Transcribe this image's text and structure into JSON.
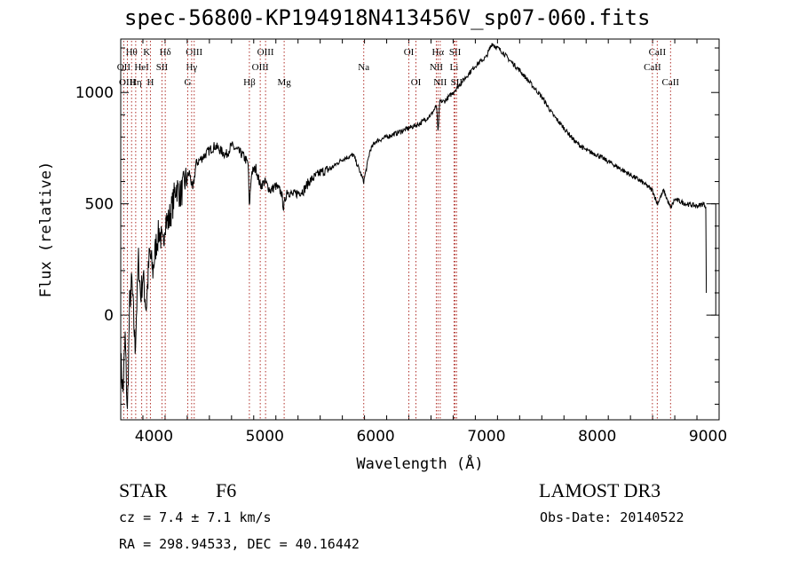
{
  "chart_data": {
    "type": "line",
    "title": "spec-56800-KP194918N413456V_sp07-060.fits",
    "xlabel": "Wavelength (Å)",
    "ylabel": "Flux (relative)",
    "xlim": [
      3700,
      9100
    ],
    "ylim": [
      -470,
      1240
    ],
    "x_ticks": [
      4000,
      5000,
      6000,
      7000,
      8000,
      9000
    ],
    "x_tick_labels": [
      "4000",
      "5000",
      "6000",
      "7000",
      "8000",
      "9000"
    ],
    "y_ticks": [
      0,
      500,
      1000
    ],
    "y_tick_labels": [
      "0",
      "500",
      "1000"
    ],
    "series": [
      {
        "name": "flux",
        "x": [
          3700,
          3720,
          3740,
          3760,
          3780,
          3800,
          3830,
          3860,
          3880,
          3900,
          3930,
          3960,
          3990,
          4020,
          4050,
          4080,
          4100,
          4130,
          4170,
          4200,
          4240,
          4280,
          4320,
          4350,
          4380,
          4420,
          4460,
          4500,
          4550,
          4600,
          4650,
          4700,
          4750,
          4800,
          4850,
          4860,
          4880,
          4920,
          4960,
          5000,
          5050,
          5100,
          5150,
          5170,
          5200,
          5250,
          5300,
          5350,
          5400,
          5450,
          5500,
          5600,
          5700,
          5800,
          5893,
          5950,
          6000,
          6100,
          6200,
          6300,
          6400,
          6500,
          6550,
          6563,
          6580,
          6620,
          6700,
          6800,
          6900,
          7000,
          7050,
          7100,
          7150,
          7200,
          7300,
          7400,
          7500,
          7600,
          7700,
          7800,
          7900,
          8000,
          8100,
          8200,
          8300,
          8400,
          8500,
          8542,
          8600,
          8662,
          8700,
          8800,
          8900,
          8960,
          8980,
          8985
        ],
        "y": [
          -200,
          -350,
          -100,
          -450,
          50,
          150,
          -150,
          250,
          80,
          180,
          30,
          280,
          200,
          320,
          380,
          300,
          430,
          420,
          500,
          580,
          540,
          600,
          640,
          560,
          680,
          700,
          720,
          740,
          760,
          740,
          720,
          760,
          740,
          720,
          680,
          480,
          640,
          660,
          580,
          600,
          560,
          580,
          550,
          480,
          560,
          540,
          550,
          560,
          600,
          620,
          640,
          660,
          700,
          720,
          600,
          740,
          780,
          800,
          820,
          840,
          860,
          900,
          940,
          820,
          960,
          960,
          1000,
          1060,
          1120,
          1160,
          1220,
          1200,
          1180,
          1150,
          1100,
          1040,
          980,
          900,
          840,
          780,
          740,
          720,
          690,
          660,
          630,
          600,
          560,
          500,
          560,
          480,
          520,
          500,
          490,
          500,
          490,
          100
        ]
      }
    ],
    "lines": [
      {
        "label": "Hθ",
        "wavelength": 3798,
        "row": 0
      },
      {
        "label": "OII",
        "wavelength": 3727,
        "row": 1
      },
      {
        "label": "OIII",
        "wavelength": 3760,
        "row": 2
      },
      {
        "label": "Hη",
        "wavelength": 3835,
        "row": 2
      },
      {
        "label": "HeI",
        "wavelength": 3889,
        "row": 1
      },
      {
        "label": "K",
        "wavelength": 3934,
        "row": 0
      },
      {
        "label": "H",
        "wavelength": 3968,
        "row": 2
      },
      {
        "label": "Hδ",
        "wavelength": 4102,
        "row": 0
      },
      {
        "label": "SII",
        "wavelength": 4072,
        "row": 1
      },
      {
        "label": "OIII",
        "wavelength": 4363,
        "row": 0
      },
      {
        "label": "Hγ",
        "wavelength": 4340,
        "row": 1
      },
      {
        "label": "G",
        "wavelength": 4305,
        "row": 2
      },
      {
        "label": "Hβ",
        "wavelength": 4861,
        "row": 2
      },
      {
        "label": "OIII",
        "wavelength": 5007,
        "row": 0
      },
      {
        "label": "OIII",
        "wavelength": 4959,
        "row": 1
      },
      {
        "label": "Mg",
        "wavelength": 5175,
        "row": 2
      },
      {
        "label": "Na",
        "wavelength": 5893,
        "row": 1
      },
      {
        "label": "OI",
        "wavelength": 6300,
        "row": 0
      },
      {
        "label": "OI",
        "wavelength": 6364,
        "row": 2
      },
      {
        "label": "Hα",
        "wavelength": 6563,
        "row": 0
      },
      {
        "label": "NII",
        "wavelength": 6548,
        "row": 1
      },
      {
        "label": "NII",
        "wavelength": 6583,
        "row": 2
      },
      {
        "label": "SII",
        "wavelength": 6717,
        "row": 0
      },
      {
        "label": "Li",
        "wavelength": 6708,
        "row": 1
      },
      {
        "label": "SII",
        "wavelength": 6731,
        "row": 2
      },
      {
        "label": "CaII",
        "wavelength": 8542,
        "row": 0
      },
      {
        "label": "CaII",
        "wavelength": 8498,
        "row": 1
      },
      {
        "label": "CaII",
        "wavelength": 8662,
        "row": 2
      }
    ]
  },
  "info": {
    "object_class": "STAR",
    "subclass": "F6",
    "survey": "LAMOST DR3",
    "cz": "cz = 7.4 ± 7.1 km/s",
    "obs_date": "Obs-Date: 20140522",
    "coords": "RA = 298.94533, DEC =  40.16442"
  }
}
